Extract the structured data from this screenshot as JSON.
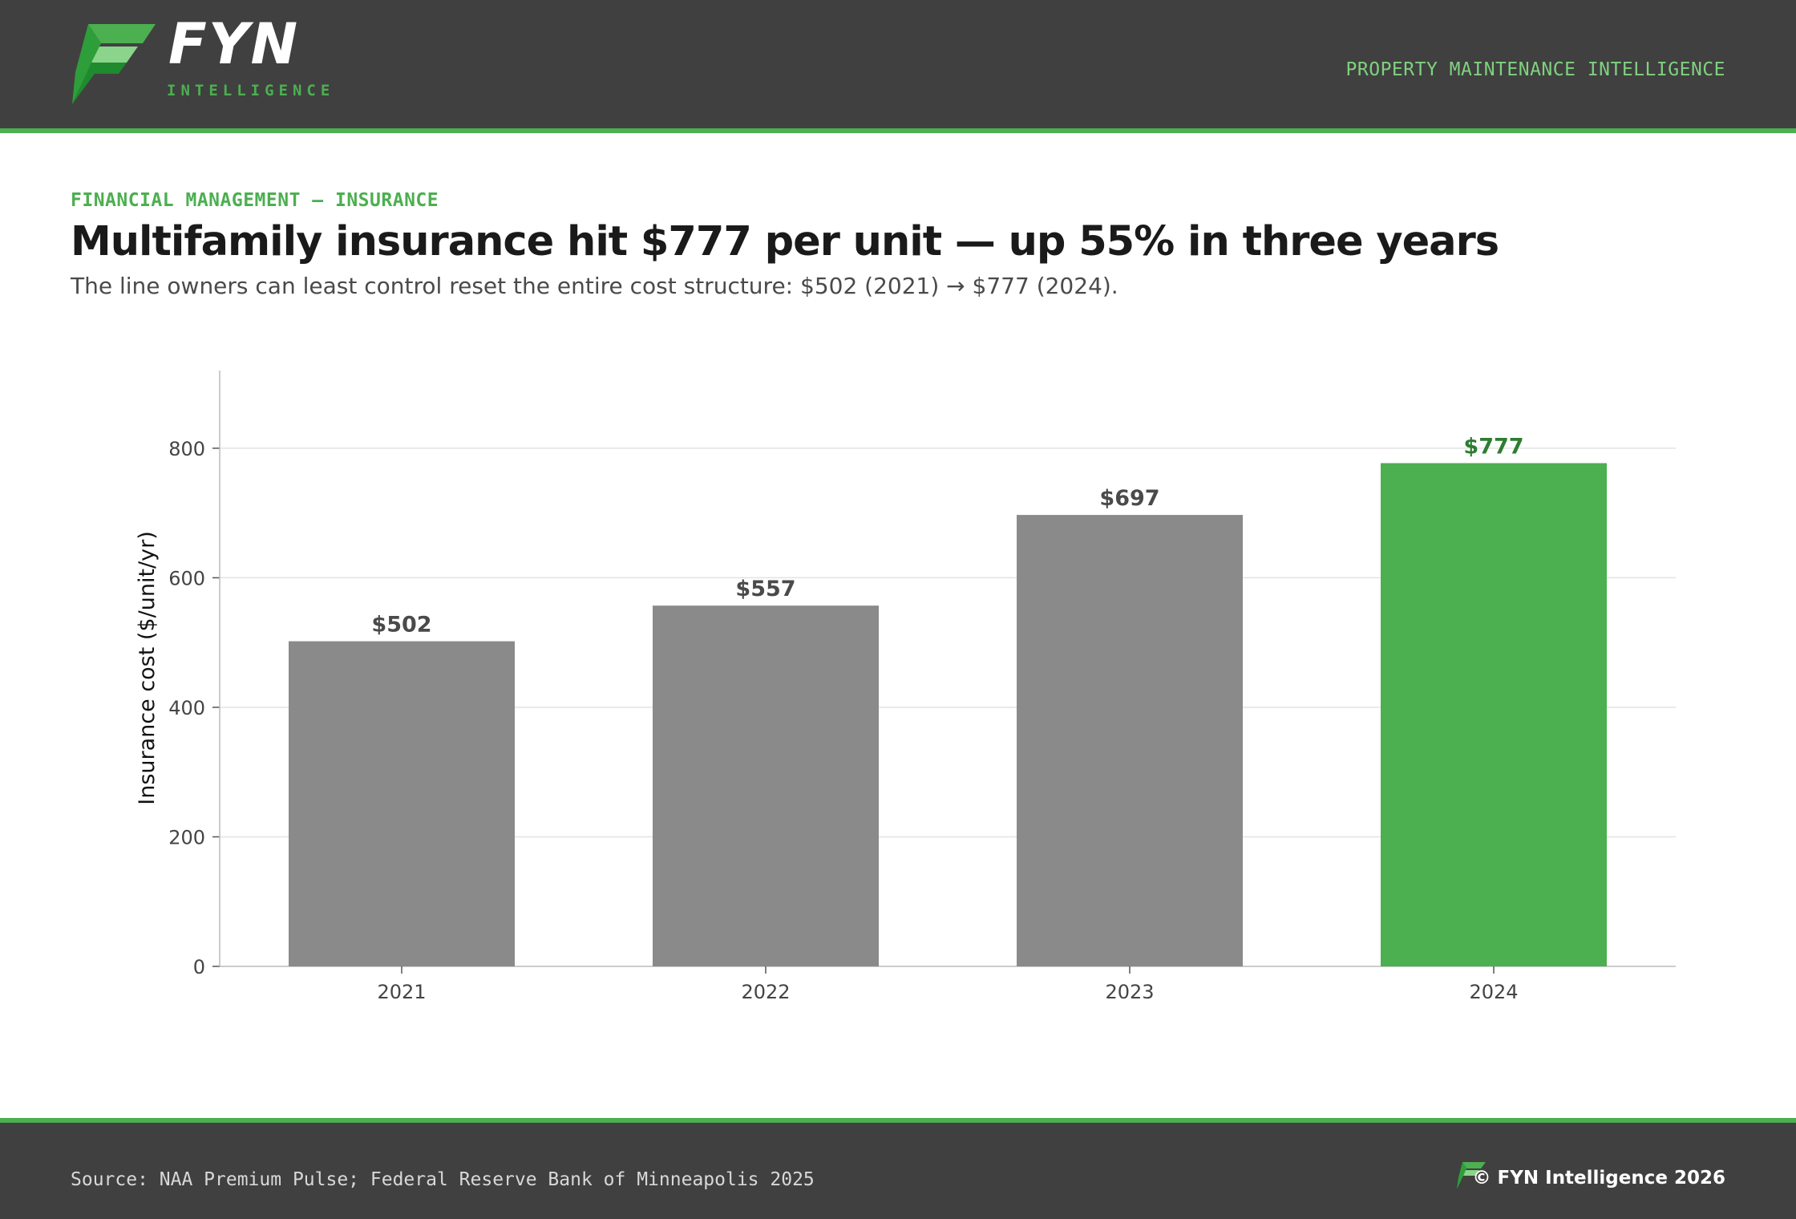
{
  "header": {
    "brand": "FYN",
    "brand_sub": "INTELLIGENCE",
    "tagline": "PROPERTY MAINTENANCE INTELLIGENCE",
    "logo_icon": "fyn-logo-icon"
  },
  "eyebrow": "FINANCIAL MANAGEMENT — INSURANCE",
  "title": "Multifamily insurance hit $777 per unit — up 55% in three years",
  "subtitle": "The line owners can least control reset the entire cost structure: $502 (2021) → $777 (2024).",
  "chart_data": {
    "type": "bar",
    "categories": [
      "2021",
      "2022",
      "2023",
      "2024"
    ],
    "values": [
      502,
      557,
      697,
      777
    ],
    "data_labels": [
      "$502",
      "$557",
      "$697",
      "$777"
    ],
    "ylabel": "Insurance cost ($/unit/yr)",
    "xlabel": "",
    "ylim": [
      0,
      920
    ],
    "yticks": [
      0,
      200,
      400,
      600,
      800
    ],
    "grid": true,
    "highlight_index": 3,
    "colors": {
      "default": "#8a8a8a",
      "highlight": "#4caf50",
      "default_label": "#4a4a4a",
      "highlight_label": "#2e7d32"
    }
  },
  "footer": {
    "source": "Source: NAA Premium Pulse; Federal Reserve Bank of Minneapolis 2025",
    "copyright": "© FYN Intelligence 2026"
  }
}
